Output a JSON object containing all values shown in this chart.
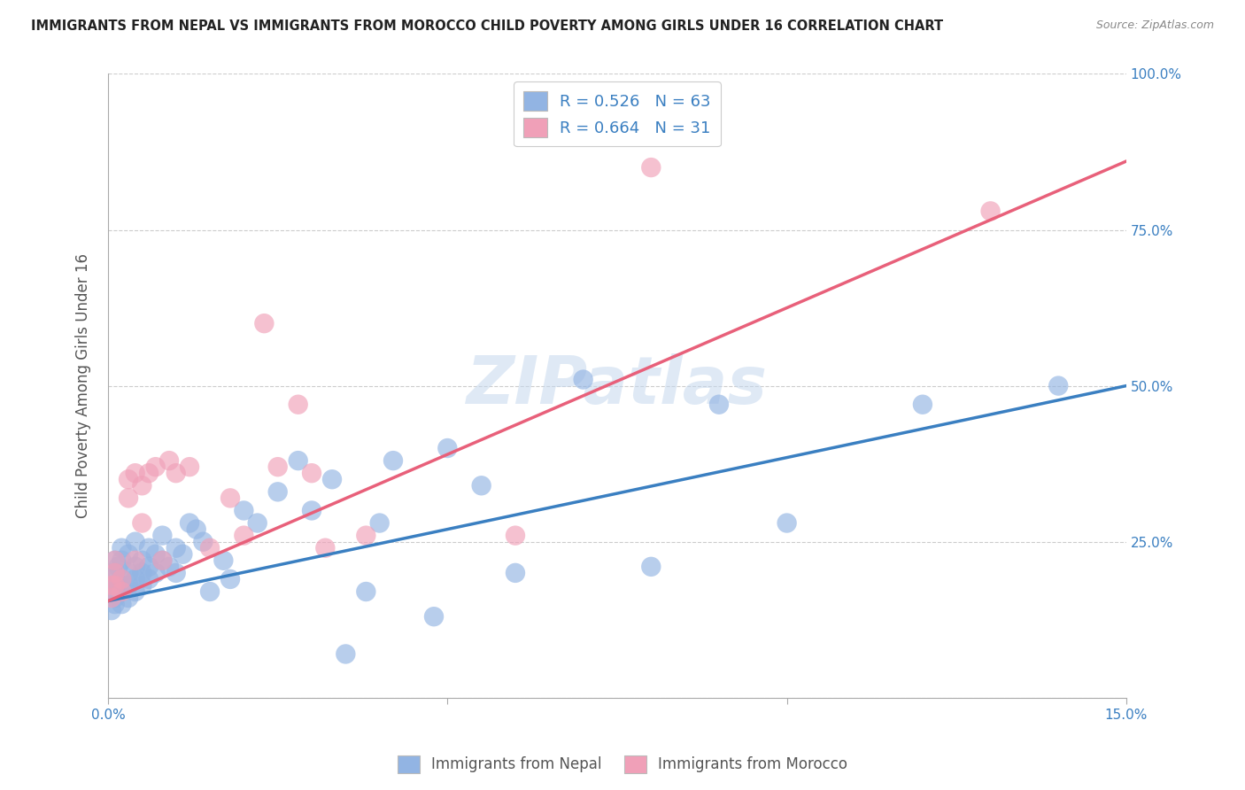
{
  "title": "IMMIGRANTS FROM NEPAL VS IMMIGRANTS FROM MOROCCO CHILD POVERTY AMONG GIRLS UNDER 16 CORRELATION CHART",
  "source": "Source: ZipAtlas.com",
  "ylabel_label": "Child Poverty Among Girls Under 16",
  "x_min": 0.0,
  "x_max": 0.15,
  "y_min": 0.0,
  "y_max": 1.0,
  "x_ticks": [
    0.0,
    0.05,
    0.1,
    0.15
  ],
  "y_ticks": [
    0.0,
    0.25,
    0.5,
    0.75,
    1.0
  ],
  "nepal_color": "#92b4e3",
  "morocco_color": "#f0a0b8",
  "nepal_line_color": "#3a7fc1",
  "morocco_line_color": "#e8607a",
  "legend_nepal_R": "0.526",
  "legend_nepal_N": "63",
  "legend_morocco_R": "0.664",
  "legend_morocco_N": "31",
  "watermark": "ZIPatlas",
  "nepal_scatter_x": [
    0.0005,
    0.0005,
    0.0005,
    0.001,
    0.001,
    0.001,
    0.001,
    0.001,
    0.0015,
    0.0015,
    0.002,
    0.002,
    0.002,
    0.002,
    0.002,
    0.003,
    0.003,
    0.003,
    0.003,
    0.004,
    0.004,
    0.004,
    0.004,
    0.005,
    0.005,
    0.005,
    0.006,
    0.006,
    0.006,
    0.007,
    0.007,
    0.008,
    0.008,
    0.009,
    0.01,
    0.01,
    0.011,
    0.012,
    0.013,
    0.014,
    0.015,
    0.017,
    0.018,
    0.02,
    0.022,
    0.025,
    0.028,
    0.03,
    0.033,
    0.035,
    0.038,
    0.04,
    0.042,
    0.048,
    0.05,
    0.055,
    0.06,
    0.07,
    0.08,
    0.09,
    0.1,
    0.12,
    0.14
  ],
  "nepal_scatter_y": [
    0.19,
    0.17,
    0.14,
    0.2,
    0.18,
    0.16,
    0.22,
    0.15,
    0.21,
    0.17,
    0.19,
    0.22,
    0.18,
    0.15,
    0.24,
    0.2,
    0.23,
    0.18,
    0.16,
    0.21,
    0.19,
    0.25,
    0.17,
    0.22,
    0.18,
    0.2,
    0.24,
    0.21,
    0.19,
    0.23,
    0.2,
    0.26,
    0.22,
    0.21,
    0.24,
    0.2,
    0.23,
    0.28,
    0.27,
    0.25,
    0.17,
    0.22,
    0.19,
    0.3,
    0.28,
    0.33,
    0.38,
    0.3,
    0.35,
    0.07,
    0.17,
    0.28,
    0.38,
    0.13,
    0.4,
    0.34,
    0.2,
    0.51,
    0.21,
    0.47,
    0.28,
    0.47,
    0.5
  ],
  "morocco_scatter_x": [
    0.0005,
    0.0005,
    0.001,
    0.001,
    0.001,
    0.002,
    0.002,
    0.003,
    0.003,
    0.004,
    0.004,
    0.005,
    0.005,
    0.006,
    0.007,
    0.008,
    0.009,
    0.01,
    0.012,
    0.015,
    0.018,
    0.02,
    0.023,
    0.025,
    0.028,
    0.03,
    0.032,
    0.038,
    0.06,
    0.08,
    0.13
  ],
  "morocco_scatter_y": [
    0.18,
    0.16,
    0.2,
    0.22,
    0.18,
    0.19,
    0.17,
    0.35,
    0.32,
    0.36,
    0.22,
    0.34,
    0.28,
    0.36,
    0.37,
    0.22,
    0.38,
    0.36,
    0.37,
    0.24,
    0.32,
    0.26,
    0.6,
    0.37,
    0.47,
    0.36,
    0.24,
    0.26,
    0.26,
    0.85,
    0.78
  ],
  "nepal_line_x": [
    0.0,
    0.15
  ],
  "nepal_line_y": [
    0.155,
    0.5
  ],
  "morocco_line_x": [
    0.0,
    0.15
  ],
  "morocco_line_y": [
    0.155,
    0.86
  ]
}
